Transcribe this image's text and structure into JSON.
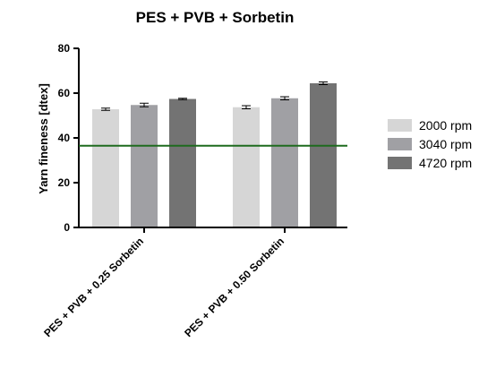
{
  "chart_data": {
    "type": "bar",
    "title": "PES + PVB + Sorbetin",
    "ylabel": "Yarn fineness [dtex]",
    "xlabel": "",
    "ylim": [
      0,
      80
    ],
    "yticks": [
      0,
      20,
      40,
      60,
      80
    ],
    "categories": [
      "PES + PVB + 0.25 Sorbetin",
      "PES + PVB + 0.50 Sorbetin"
    ],
    "series": [
      {
        "name": "2000 rpm",
        "values": [
          52.8,
          53.7
        ],
        "errors": [
          0.5,
          0.7
        ],
        "color": "#d6d6d6"
      },
      {
        "name": "3040 rpm",
        "values": [
          54.7,
          57.7
        ],
        "errors": [
          0.8,
          0.7
        ],
        "color": "#a0a0a4"
      },
      {
        "name": "4720 rpm",
        "values": [
          57.4,
          64.4
        ],
        "errors": [
          0.3,
          0.6
        ],
        "color": "#737373"
      }
    ],
    "reference_line": {
      "value": 36.5,
      "color": "#1e6b1e"
    },
    "legend_position": "right",
    "grid": false
  }
}
